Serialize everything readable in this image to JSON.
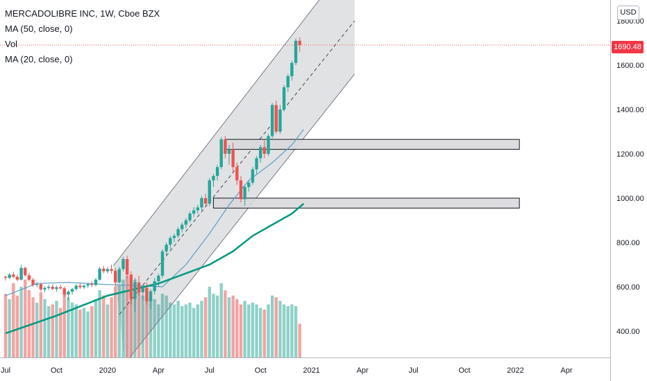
{
  "header": {
    "symbol_line": "MERCADOLIBRE INC, 1W, Cboe BZX",
    "indicators": [
      "MA (50, close, 0)",
      "Vol",
      "MA (20, close, 0)"
    ]
  },
  "price_scale": {
    "currency": "USD",
    "last_price": "1690.48",
    "last_price_color": "#f23645"
  },
  "colors": {
    "up": "#26a69a",
    "down": "#ef5350",
    "volume_up": "#8ed1c8",
    "volume_down": "#f4a3a1",
    "ma50": "#089981",
    "ma20": "#5b9cc9",
    "channel": "#787b86",
    "zone_fill": "#d9d9db",
    "zone_border": "#131722"
  },
  "chart_data": {
    "type": "candlestick",
    "symbol": "MERCADOLIBRE INC",
    "interval": "1W",
    "exchange": "Cboe BZX",
    "y_axis": {
      "ticks": [
        "400.00",
        "600.00",
        "800.00",
        "1000.00",
        "1200.00",
        "1400.00",
        "1600.00",
        "1800.00"
      ],
      "range": [
        300,
        1880
      ]
    },
    "x_axis": {
      "ticks": [
        {
          "label": "Jul",
          "week": 0
        },
        {
          "label": "Oct",
          "week": 13
        },
        {
          "label": "2020",
          "week": 26
        },
        {
          "label": "Apr",
          "week": 39
        },
        {
          "label": "Jul",
          "week": 52
        },
        {
          "label": "Oct",
          "week": 65
        },
        {
          "label": "2021",
          "week": 78
        },
        {
          "label": "Apr",
          "week": 91
        },
        {
          "label": "Jul",
          "week": 104
        },
        {
          "label": "Oct",
          "week": 117
        },
        {
          "label": "2022",
          "week": 130
        },
        {
          "label": "Apr",
          "week": 143
        }
      ]
    },
    "candles": [
      [
        645,
        650,
        628,
        640,
        0.36
      ],
      [
        640,
        662,
        635,
        655,
        0.33
      ],
      [
        655,
        668,
        640,
        645,
        0.42
      ],
      [
        645,
        655,
        625,
        632,
        0.35
      ],
      [
        632,
        700,
        628,
        685,
        0.4
      ],
      [
        685,
        692,
        645,
        652,
        0.44
      ],
      [
        652,
        662,
        625,
        632,
        0.38
      ],
      [
        632,
        640,
        600,
        608,
        0.34
      ],
      [
        608,
        622,
        598,
        612,
        0.31
      ],
      [
        612,
        618,
        580,
        588,
        0.37
      ],
      [
        588,
        602,
        575,
        595,
        0.33
      ],
      [
        595,
        610,
        585,
        600,
        0.29
      ],
      [
        600,
        612,
        585,
        590,
        0.3
      ],
      [
        590,
        605,
        578,
        598,
        0.32
      ],
      [
        598,
        610,
        588,
        593,
        0.28
      ],
      [
        593,
        602,
        555,
        565,
        0.36
      ],
      [
        565,
        585,
        540,
        578,
        0.34
      ],
      [
        578,
        595,
        565,
        590,
        0.31
      ],
      [
        590,
        612,
        582,
        605,
        0.3
      ],
      [
        605,
        615,
        590,
        598,
        0.27
      ],
      [
        598,
        610,
        590,
        605,
        0.28
      ],
      [
        605,
        618,
        595,
        612,
        0.26
      ],
      [
        612,
        625,
        600,
        608,
        0.29
      ],
      [
        608,
        640,
        602,
        632,
        0.33
      ],
      [
        632,
        690,
        628,
        682,
        0.38
      ],
      [
        682,
        695,
        660,
        670,
        0.35
      ],
      [
        670,
        690,
        660,
        680,
        0.3
      ],
      [
        680,
        700,
        660,
        672,
        0.34
      ],
      [
        672,
        685,
        600,
        620,
        0.4
      ],
      [
        620,
        690,
        615,
        680,
        0.41
      ],
      [
        680,
        735,
        670,
        725,
        0.44
      ],
      [
        725,
        740,
        640,
        655,
        0.46
      ],
      [
        655,
        670,
        520,
        545,
        0.43
      ],
      [
        545,
        640,
        485,
        620,
        0.44
      ],
      [
        620,
        650,
        560,
        575,
        0.4
      ],
      [
        575,
        610,
        540,
        595,
        0.35
      ],
      [
        595,
        620,
        520,
        535,
        0.33
      ],
      [
        535,
        590,
        500,
        580,
        0.34
      ],
      [
        580,
        640,
        565,
        625,
        0.33
      ],
      [
        625,
        660,
        600,
        650,
        0.3
      ],
      [
        650,
        770,
        640,
        760,
        0.36
      ],
      [
        760,
        800,
        740,
        790,
        0.35
      ],
      [
        790,
        830,
        770,
        820,
        0.31
      ],
      [
        820,
        840,
        800,
        830,
        0.3
      ],
      [
        830,
        870,
        820,
        860,
        0.32
      ],
      [
        860,
        890,
        845,
        880,
        0.29
      ],
      [
        880,
        910,
        865,
        900,
        0.3
      ],
      [
        900,
        940,
        890,
        930,
        0.31
      ],
      [
        930,
        960,
        915,
        945,
        0.28
      ],
      [
        945,
        970,
        930,
        958,
        0.3
      ],
      [
        958,
        1010,
        945,
        1000,
        0.32
      ],
      [
        1000,
        1020,
        960,
        975,
        0.34
      ],
      [
        975,
        1090,
        965,
        1080,
        0.4
      ],
      [
        1080,
        1110,
        1050,
        1100,
        0.36
      ],
      [
        1100,
        1150,
        1080,
        1140,
        0.35
      ],
      [
        1140,
        1275,
        1130,
        1265,
        0.42
      ],
      [
        1265,
        1280,
        1180,
        1200,
        0.38
      ],
      [
        1200,
        1240,
        1150,
        1220,
        0.34
      ],
      [
        1220,
        1250,
        1120,
        1140,
        0.35
      ],
      [
        1140,
        1160,
        1060,
        1080,
        0.33
      ],
      [
        1080,
        1100,
        980,
        995,
        0.3
      ],
      [
        995,
        1060,
        965,
        1050,
        0.32
      ],
      [
        1050,
        1080,
        1030,
        1070,
        0.3
      ],
      [
        1070,
        1140,
        1060,
        1130,
        0.31
      ],
      [
        1130,
        1190,
        1110,
        1180,
        0.3
      ],
      [
        1180,
        1240,
        1160,
        1230,
        0.28
      ],
      [
        1230,
        1260,
        1180,
        1200,
        0.27
      ],
      [
        1200,
        1290,
        1190,
        1280,
        0.3
      ],
      [
        1280,
        1430,
        1270,
        1420,
        0.35
      ],
      [
        1420,
        1440,
        1290,
        1300,
        0.34
      ],
      [
        1300,
        1420,
        1290,
        1400,
        0.32
      ],
      [
        1400,
        1510,
        1390,
        1500,
        0.3
      ],
      [
        1500,
        1560,
        1480,
        1550,
        0.29
      ],
      [
        1550,
        1620,
        1530,
        1610,
        0.3
      ],
      [
        1610,
        1720,
        1600,
        1710,
        0.29
      ],
      [
        1710,
        1725,
        1660,
        1690.48,
        0.19
      ]
    ],
    "ma50": [
      [
        0,
        390
      ],
      [
        13,
        470
      ],
      [
        26,
        560
      ],
      [
        39,
        615
      ],
      [
        52,
        700
      ],
      [
        58,
        760
      ],
      [
        63,
        830
      ],
      [
        68,
        880
      ],
      [
        73,
        930
      ],
      [
        76,
        975
      ]
    ],
    "ma20": [
      [
        0,
        560
      ],
      [
        8,
        615
      ],
      [
        16,
        620
      ],
      [
        26,
        610
      ],
      [
        34,
        605
      ],
      [
        40,
        600
      ],
      [
        46,
        700
      ],
      [
        52,
        840
      ],
      [
        57,
        970
      ],
      [
        62,
        1080
      ],
      [
        68,
        1160
      ],
      [
        73,
        1240
      ],
      [
        76,
        1310
      ]
    ]
  },
  "drawings": {
    "channel": {
      "upper": [
        [
          27.5,
          695
        ],
        [
          89,
          2100
        ]
      ],
      "lower": [
        [
          30.5,
          255
        ],
        [
          89,
          1560
        ]
      ],
      "mid": [
        [
          29,
          475
        ],
        [
          89,
          1800
        ]
      ]
    },
    "zones": [
      {
        "from_week": 56,
        "to_week": 131,
        "low": 1220,
        "high": 1265
      },
      {
        "from_week": 53,
        "to_week": 131,
        "low": 955,
        "high": 1000
      }
    ]
  }
}
